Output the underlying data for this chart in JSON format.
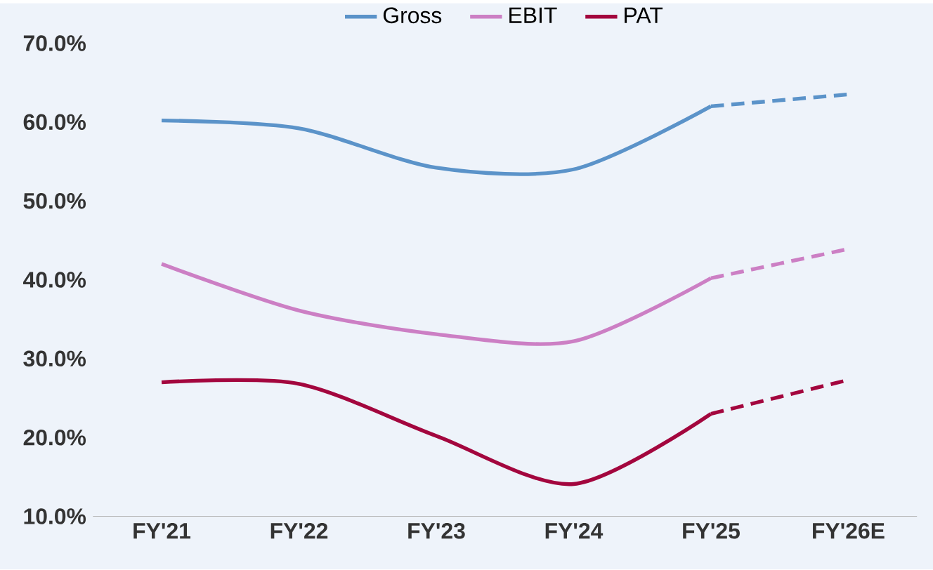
{
  "chart_data": {
    "type": "line",
    "categories": [
      "FY'21",
      "FY'22",
      "FY'23",
      "FY'24",
      "FY'25",
      "FY'26E"
    ],
    "series": [
      {
        "name": "Gross",
        "color": "#5b93c9",
        "line_style": "solid",
        "values": [
          60.2,
          59.2,
          54.2,
          54.0,
          62.0,
          null
        ]
      },
      {
        "name": "EBIT",
        "color": "#cc7fc4",
        "line_style": "solid",
        "values": [
          42.0,
          36.1,
          33.1,
          32.2,
          40.2,
          null
        ]
      },
      {
        "name": "PAT",
        "color": "#a3063e",
        "line_style": "solid",
        "values": [
          27.0,
          26.8,
          20.2,
          14.1,
          23.0,
          null
        ]
      },
      {
        "color": "#5b93c9",
        "line_style": "dashed",
        "values": [
          null,
          null,
          null,
          null,
          62.0,
          63.5
        ]
      },
      {
        "color": "#cc7fc4",
        "line_style": "dashed",
        "values": [
          null,
          null,
          null,
          null,
          40.2,
          43.9
        ]
      },
      {
        "color": "#a3063e",
        "line_style": "dashed",
        "values": [
          null,
          null,
          null,
          null,
          23.0,
          27.3
        ]
      }
    ],
    "ylim": [
      10,
      70
    ],
    "yticks": [
      {
        "value": 10,
        "label": "10.0%"
      },
      {
        "value": 20,
        "label": "20.0%"
      },
      {
        "value": 30,
        "label": "30.0%"
      },
      {
        "value": 40,
        "label": "40.0%"
      },
      {
        "value": 50,
        "label": "50.0%"
      },
      {
        "value": 60,
        "label": "60.0%"
      },
      {
        "value": 70,
        "label": "70.0%"
      }
    ],
    "grid": false,
    "legend": "top",
    "marker": "none"
  }
}
